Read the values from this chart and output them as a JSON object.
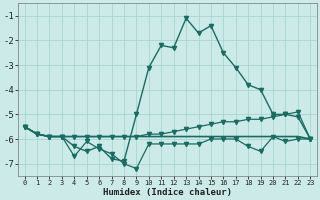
{
  "xlabel": "Humidex (Indice chaleur)",
  "background_color": "#cceae7",
  "grid_color": "#aad4d0",
  "line_color": "#1a6b63",
  "x": [
    0,
    1,
    2,
    3,
    4,
    5,
    6,
    7,
    8,
    9,
    10,
    11,
    12,
    13,
    14,
    15,
    16,
    17,
    18,
    19,
    20,
    21,
    22,
    23
  ],
  "series1": [
    -5.5,
    -5.8,
    -5.9,
    -5.9,
    -6.3,
    -6.5,
    -6.3,
    -6.8,
    -6.9,
    -5.0,
    -3.1,
    -2.2,
    -2.3,
    -1.1,
    -1.7,
    -1.4,
    -2.5,
    -3.1,
    -3.8,
    -4.0,
    -5.0,
    -5.0,
    -5.1,
    -6.0
  ],
  "series2": [
    -5.5,
    -5.8,
    -5.9,
    -5.9,
    -6.7,
    -6.1,
    -6.4,
    -6.6,
    -7.0,
    -7.2,
    -6.2,
    -6.2,
    -6.2,
    -6.2,
    -6.2,
    -6.0,
    -6.0,
    -6.0,
    -6.3,
    -6.5,
    -5.9,
    -6.1,
    -6.0,
    -6.0
  ],
  "series3": [
    -5.5,
    -5.8,
    -5.9,
    -5.9,
    -5.9,
    -5.9,
    -5.9,
    -5.9,
    -5.9,
    -5.9,
    -5.8,
    -5.8,
    -5.7,
    -5.6,
    -5.5,
    -5.4,
    -5.3,
    -5.3,
    -5.2,
    -5.2,
    -5.1,
    -5.0,
    -4.9,
    -6.0
  ],
  "series4": [
    -5.5,
    -5.8,
    -5.9,
    -5.9,
    -5.9,
    -5.9,
    -5.9,
    -5.9,
    -5.9,
    -5.9,
    -5.9,
    -5.9,
    -5.9,
    -5.9,
    -5.9,
    -5.9,
    -5.9,
    -5.9,
    -5.9,
    -5.9,
    -5.9,
    -5.9,
    -5.9,
    -6.0
  ],
  "ylim": [
    -7.5,
    -0.5
  ],
  "xlim": [
    -0.5,
    23.5
  ],
  "yticks": [
    -7,
    -6,
    -5,
    -4,
    -3,
    -2,
    -1
  ],
  "xticks": [
    0,
    1,
    2,
    3,
    4,
    5,
    6,
    7,
    8,
    9,
    10,
    11,
    12,
    13,
    14,
    15,
    16,
    17,
    18,
    19,
    20,
    21,
    22,
    23
  ]
}
